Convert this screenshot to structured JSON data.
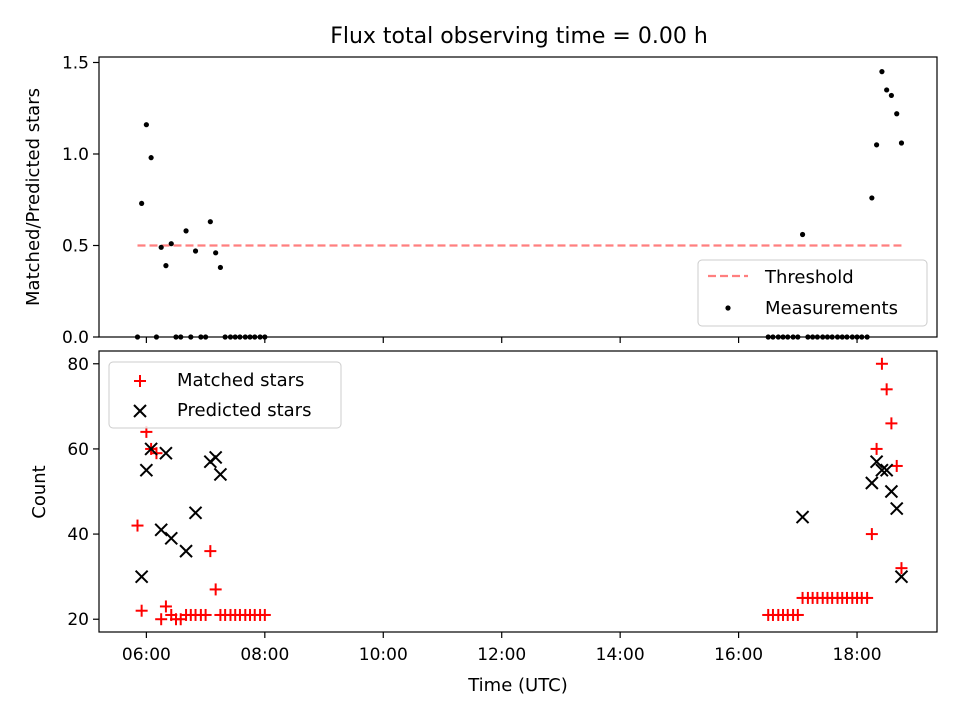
{
  "figure_title": "Flux total observing time = 0.00 h",
  "chart_data": [
    {
      "type": "scatter",
      "title": "Flux total observing time = 0.00 h",
      "xlabel": "",
      "ylabel": "Matched/Predicted stars",
      "x_units": "hours (UTC)",
      "xlim": [
        5.2,
        19.35
      ],
      "ylim": [
        0,
        1.53
      ],
      "yticks": [
        0.0,
        0.5,
        1.0,
        1.5
      ],
      "ytick_labels": [
        "0.0",
        "0.5",
        "1.0",
        "1.5"
      ],
      "x_tick_labels_shown": false,
      "threshold": {
        "name": "Threshold",
        "value": 0.5,
        "x_range": [
          5.85,
          18.75
        ],
        "color": "#ff7f7f",
        "style": "dashed"
      },
      "series": [
        {
          "name": "Measurements",
          "marker": "dot",
          "color": "#000000",
          "points": [
            [
              5.85,
              0.0
            ],
            [
              5.92,
              0.73
            ],
            [
              6.0,
              1.16
            ],
            [
              6.08,
              0.98
            ],
            [
              6.17,
              0.0
            ],
            [
              6.25,
              0.49
            ],
            [
              6.33,
              0.39
            ],
            [
              6.42,
              0.51
            ],
            [
              6.5,
              0.0
            ],
            [
              6.58,
              0.0
            ],
            [
              6.67,
              0.58
            ],
            [
              6.75,
              0.0
            ],
            [
              6.83,
              0.47
            ],
            [
              6.92,
              0.0
            ],
            [
              7.0,
              0.0
            ],
            [
              7.08,
              0.63
            ],
            [
              7.17,
              0.46
            ],
            [
              7.25,
              0.38
            ],
            [
              7.33,
              0.0
            ],
            [
              7.42,
              0.0
            ],
            [
              7.5,
              0.0
            ],
            [
              7.58,
              0.0
            ],
            [
              7.67,
              0.0
            ],
            [
              7.75,
              0.0
            ],
            [
              7.83,
              0.0
            ],
            [
              7.92,
              0.0
            ],
            [
              8.0,
              0.0
            ],
            [
              16.5,
              0.0
            ],
            [
              16.58,
              0.0
            ],
            [
              16.67,
              0.0
            ],
            [
              16.75,
              0.0
            ],
            [
              16.83,
              0.0
            ],
            [
              16.92,
              0.0
            ],
            [
              17.0,
              0.0
            ],
            [
              17.08,
              0.56
            ],
            [
              17.17,
              0.0
            ],
            [
              17.25,
              0.0
            ],
            [
              17.33,
              0.0
            ],
            [
              17.42,
              0.0
            ],
            [
              17.5,
              0.0
            ],
            [
              17.58,
              0.0
            ],
            [
              17.67,
              0.0
            ],
            [
              17.75,
              0.0
            ],
            [
              17.83,
              0.0
            ],
            [
              17.92,
              0.0
            ],
            [
              18.0,
              0.0
            ],
            [
              18.08,
              0.0
            ],
            [
              18.17,
              0.0
            ],
            [
              18.25,
              0.76
            ],
            [
              18.33,
              1.05
            ],
            [
              18.42,
              1.45
            ],
            [
              18.5,
              1.35
            ],
            [
              18.58,
              1.32
            ],
            [
              18.67,
              1.22
            ],
            [
              18.75,
              1.06
            ]
          ]
        }
      ],
      "legend": {
        "position": "lower right",
        "entries": [
          "Threshold",
          "Measurements"
        ]
      }
    },
    {
      "type": "scatter",
      "title": "",
      "xlabel": "Time (UTC)",
      "ylabel": "Count",
      "x_units": "hours (UTC)",
      "xlim": [
        5.2,
        19.35
      ],
      "ylim": [
        17,
        83
      ],
      "yticks": [
        20,
        40,
        60,
        80
      ],
      "ytick_labels": [
        "20",
        "40",
        "60",
        "80"
      ],
      "xticks": [
        6,
        8,
        10,
        12,
        14,
        16,
        18
      ],
      "xtick_labels": [
        "06:00",
        "08:00",
        "10:00",
        "12:00",
        "14:00",
        "16:00",
        "18:00"
      ],
      "series": [
        {
          "name": "Matched stars",
          "marker": "plus",
          "color": "#ff0000",
          "points": [
            [
              5.85,
              42
            ],
            [
              5.92,
              22
            ],
            [
              6.0,
              64
            ],
            [
              6.08,
              60
            ],
            [
              6.17,
              59
            ],
            [
              6.25,
              20
            ],
            [
              6.33,
              23
            ],
            [
              6.42,
              21
            ],
            [
              6.5,
              20
            ],
            [
              6.58,
              20
            ],
            [
              6.67,
              21
            ],
            [
              6.75,
              21
            ],
            [
              6.83,
              21
            ],
            [
              6.92,
              21
            ],
            [
              7.0,
              21
            ],
            [
              7.08,
              36
            ],
            [
              7.17,
              27
            ],
            [
              7.25,
              21
            ],
            [
              7.33,
              21
            ],
            [
              7.42,
              21
            ],
            [
              7.5,
              21
            ],
            [
              7.58,
              21
            ],
            [
              7.67,
              21
            ],
            [
              7.75,
              21
            ],
            [
              7.83,
              21
            ],
            [
              7.92,
              21
            ],
            [
              8.0,
              21
            ],
            [
              16.5,
              21
            ],
            [
              16.58,
              21
            ],
            [
              16.67,
              21
            ],
            [
              16.75,
              21
            ],
            [
              16.83,
              21
            ],
            [
              16.92,
              21
            ],
            [
              17.0,
              21
            ],
            [
              17.08,
              25
            ],
            [
              17.17,
              25
            ],
            [
              17.25,
              25
            ],
            [
              17.33,
              25
            ],
            [
              17.42,
              25
            ],
            [
              17.5,
              25
            ],
            [
              17.58,
              25
            ],
            [
              17.67,
              25
            ],
            [
              17.75,
              25
            ],
            [
              17.83,
              25
            ],
            [
              17.92,
              25
            ],
            [
              18.0,
              25
            ],
            [
              18.08,
              25
            ],
            [
              18.17,
              25
            ],
            [
              18.25,
              40
            ],
            [
              18.33,
              60
            ],
            [
              18.42,
              80
            ],
            [
              18.5,
              74
            ],
            [
              18.58,
              66
            ],
            [
              18.67,
              56
            ],
            [
              18.75,
              32
            ]
          ]
        },
        {
          "name": "Predicted stars",
          "marker": "x",
          "color": "#000000",
          "points": [
            [
              5.92,
              30
            ],
            [
              6.0,
              55
            ],
            [
              6.08,
              60
            ],
            [
              6.25,
              41
            ],
            [
              6.33,
              59
            ],
            [
              6.42,
              39
            ],
            [
              6.67,
              36
            ],
            [
              6.83,
              45
            ],
            [
              7.08,
              57
            ],
            [
              7.17,
              58
            ],
            [
              7.25,
              54
            ],
            [
              17.08,
              44
            ],
            [
              18.25,
              52
            ],
            [
              18.33,
              57
            ],
            [
              18.42,
              55
            ],
            [
              18.5,
              55
            ],
            [
              18.58,
              50
            ],
            [
              18.67,
              46
            ],
            [
              18.75,
              30
            ]
          ]
        }
      ],
      "legend": {
        "position": "upper left",
        "entries": [
          "Matched stars",
          "Predicted stars"
        ]
      }
    }
  ]
}
